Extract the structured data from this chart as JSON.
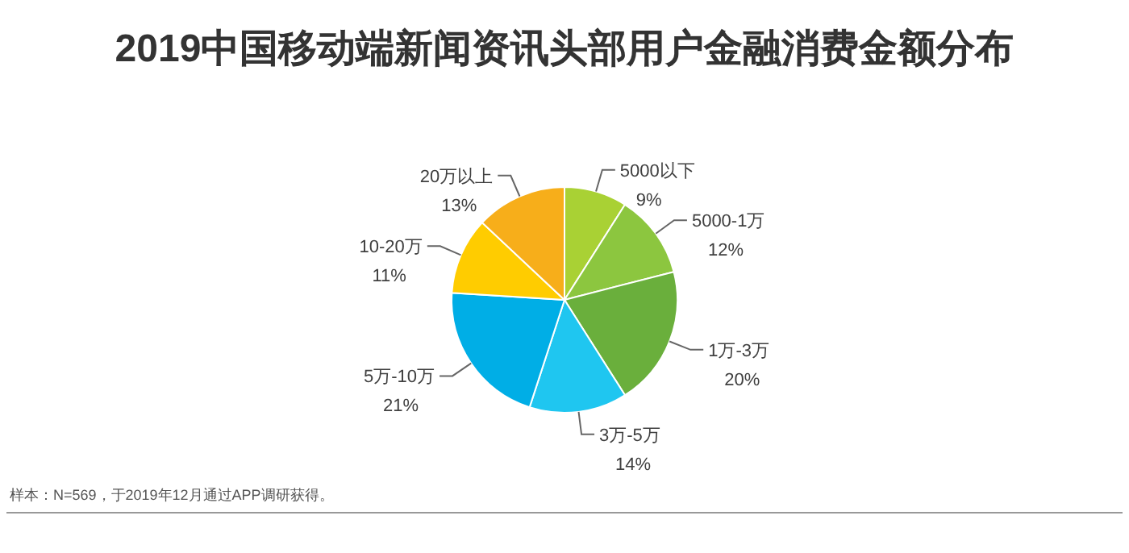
{
  "chart_data": {
    "type": "pie",
    "title": "2019中国移动端新闻资讯头部用户金融消费金额分布",
    "categories": [
      "5000以下",
      "5000-1万",
      "1万-3万",
      "3万-5万",
      "5万-10万",
      "10-20万",
      "20万以上"
    ],
    "values": [
      9,
      12,
      20,
      14,
      21,
      11,
      13
    ],
    "value_labels": [
      "9%",
      "12%",
      "20%",
      "14%",
      "21%",
      "11%",
      "13%"
    ],
    "colors": [
      "#a9d134",
      "#8cc63f",
      "#6aaf3c",
      "#1fc6f0",
      "#00aee6",
      "#ffcc00",
      "#f7ae1a"
    ],
    "annotations": [
      "样本：N=569，于2019年12月通过APP调研获得。"
    ]
  }
}
